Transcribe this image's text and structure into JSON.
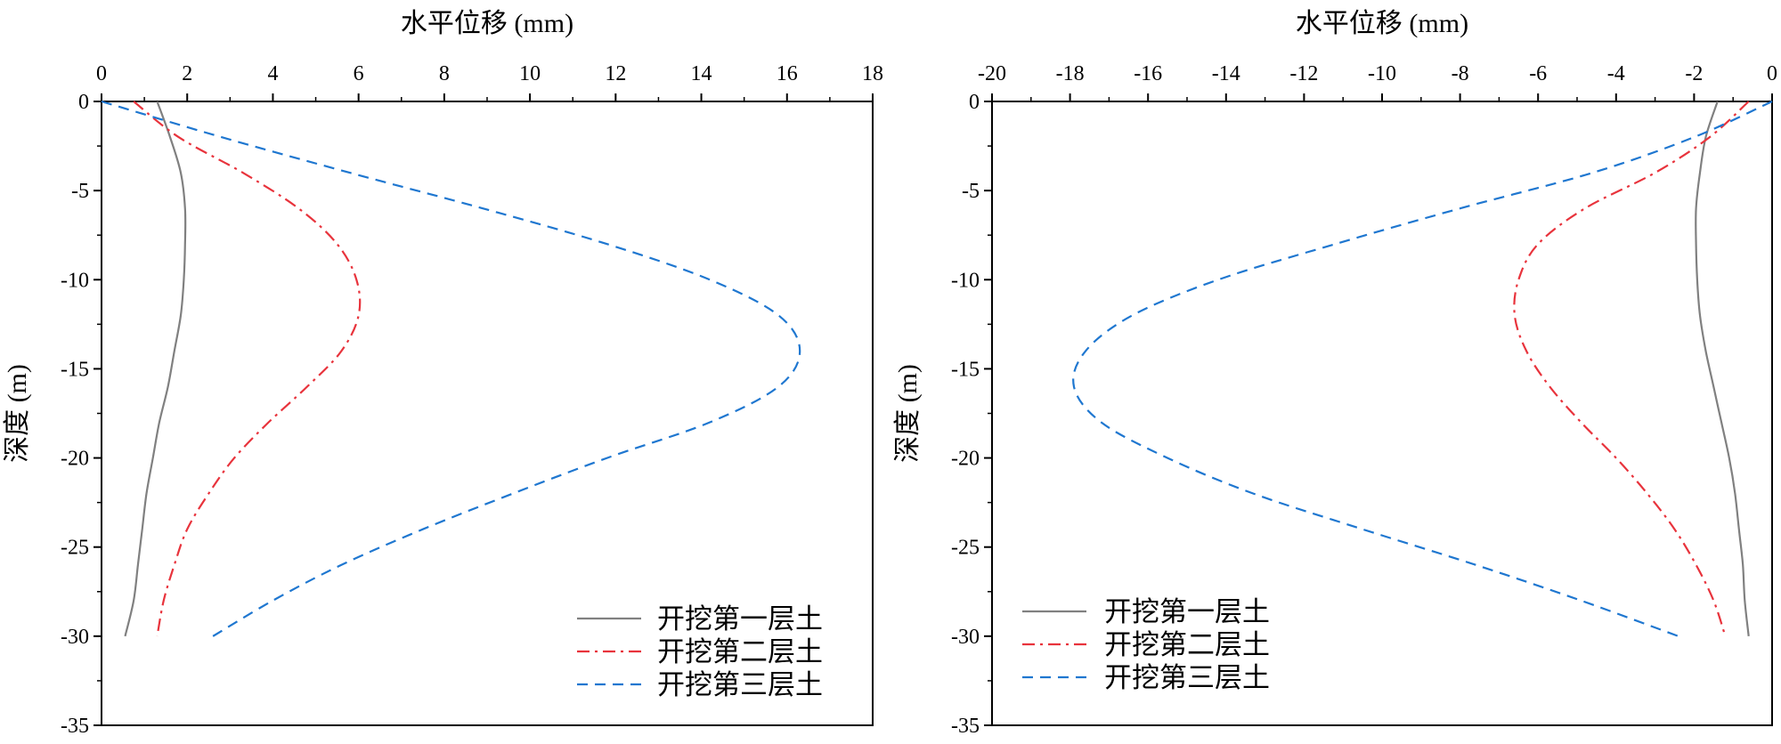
{
  "chart_data": [
    {
      "type": "line",
      "title": "",
      "xlabel": "水平位移 (mm)",
      "ylabel": "深度 (m)",
      "xlim": [
        0,
        18
      ],
      "ylim": [
        -35,
        0
      ],
      "x_ticks": [
        0,
        2,
        4,
        6,
        8,
        10,
        12,
        14,
        16,
        18
      ],
      "y_ticks": [
        0,
        -5,
        -10,
        -15,
        -20,
        -25,
        -30,
        -35
      ],
      "x_axis_position": "top",
      "grid": false,
      "legend_position": "bottom-right",
      "depth": [
        0,
        -2,
        -4,
        -6,
        -8,
        -10,
        -12,
        -14,
        -16,
        -18,
        -20,
        -22,
        -24,
        -26,
        -28,
        -30
      ],
      "series": [
        {
          "name": "开挖第一层土",
          "color": "#808080",
          "dash": "solid",
          "x": [
            1.3,
            1.6,
            1.85,
            1.95,
            1.95,
            1.92,
            1.85,
            1.7,
            1.55,
            1.35,
            1.2,
            1.05,
            0.95,
            0.85,
            0.75,
            0.55
          ]
        },
        {
          "name": "开挖第二层土",
          "color": "#e8333c",
          "dash": "dashdot",
          "x": [
            0.75,
            1.8,
            3.3,
            4.6,
            5.5,
            5.95,
            6.0,
            5.6,
            4.8,
            3.9,
            3.1,
            2.5,
            2.0,
            1.7,
            1.45,
            1.3
          ]
        },
        {
          "name": "开挖第三层土",
          "color": "#1f77d0",
          "dash": "dashed",
          "x": [
            0,
            2.8,
            5.8,
            8.9,
            11.8,
            14.2,
            15.8,
            16.3,
            15.8,
            14.2,
            11.8,
            9.6,
            7.5,
            5.6,
            4.0,
            2.6
          ]
        }
      ]
    },
    {
      "type": "line",
      "title": "",
      "xlabel": "水平位移 (mm)",
      "ylabel": "深度 (m)",
      "xlim": [
        -20,
        0
      ],
      "ylim": [
        -35,
        0
      ],
      "x_ticks": [
        -20,
        -18,
        -16,
        -14,
        -12,
        -10,
        -8,
        -6,
        -4,
        -2,
        0
      ],
      "y_ticks": [
        0,
        -5,
        -10,
        -15,
        -20,
        -25,
        -30,
        -35
      ],
      "x_axis_position": "top",
      "grid": false,
      "legend_position": "bottom-left",
      "depth": [
        0,
        -2,
        -4,
        -6,
        -8,
        -10,
        -12,
        -14,
        -16,
        -18,
        -20,
        -22,
        -24,
        -26,
        -28,
        -30
      ],
      "series": [
        {
          "name": "开挖第一层土",
          "color": "#808080",
          "dash": "solid",
          "x": [
            -1.4,
            -1.7,
            -1.85,
            -1.95,
            -1.95,
            -1.92,
            -1.85,
            -1.7,
            -1.5,
            -1.3,
            -1.1,
            -0.95,
            -0.85,
            -0.75,
            -0.7,
            -0.6
          ]
        },
        {
          "name": "开挖第二层土",
          "color": "#e8333c",
          "dash": "dashdot",
          "x": [
            -0.6,
            -1.6,
            -3.0,
            -4.8,
            -6.0,
            -6.5,
            -6.6,
            -6.3,
            -5.7,
            -4.9,
            -4.0,
            -3.2,
            -2.5,
            -1.95,
            -1.5,
            -1.2
          ]
        },
        {
          "name": "开挖第三层土",
          "color": "#1f77d0",
          "dash": "dashed",
          "x": [
            0,
            -2.0,
            -4.6,
            -8.0,
            -11.2,
            -14.2,
            -16.4,
            -17.6,
            -17.9,
            -17.2,
            -15.5,
            -13.3,
            -10.5,
            -7.6,
            -4.9,
            -2.4
          ]
        }
      ]
    }
  ]
}
